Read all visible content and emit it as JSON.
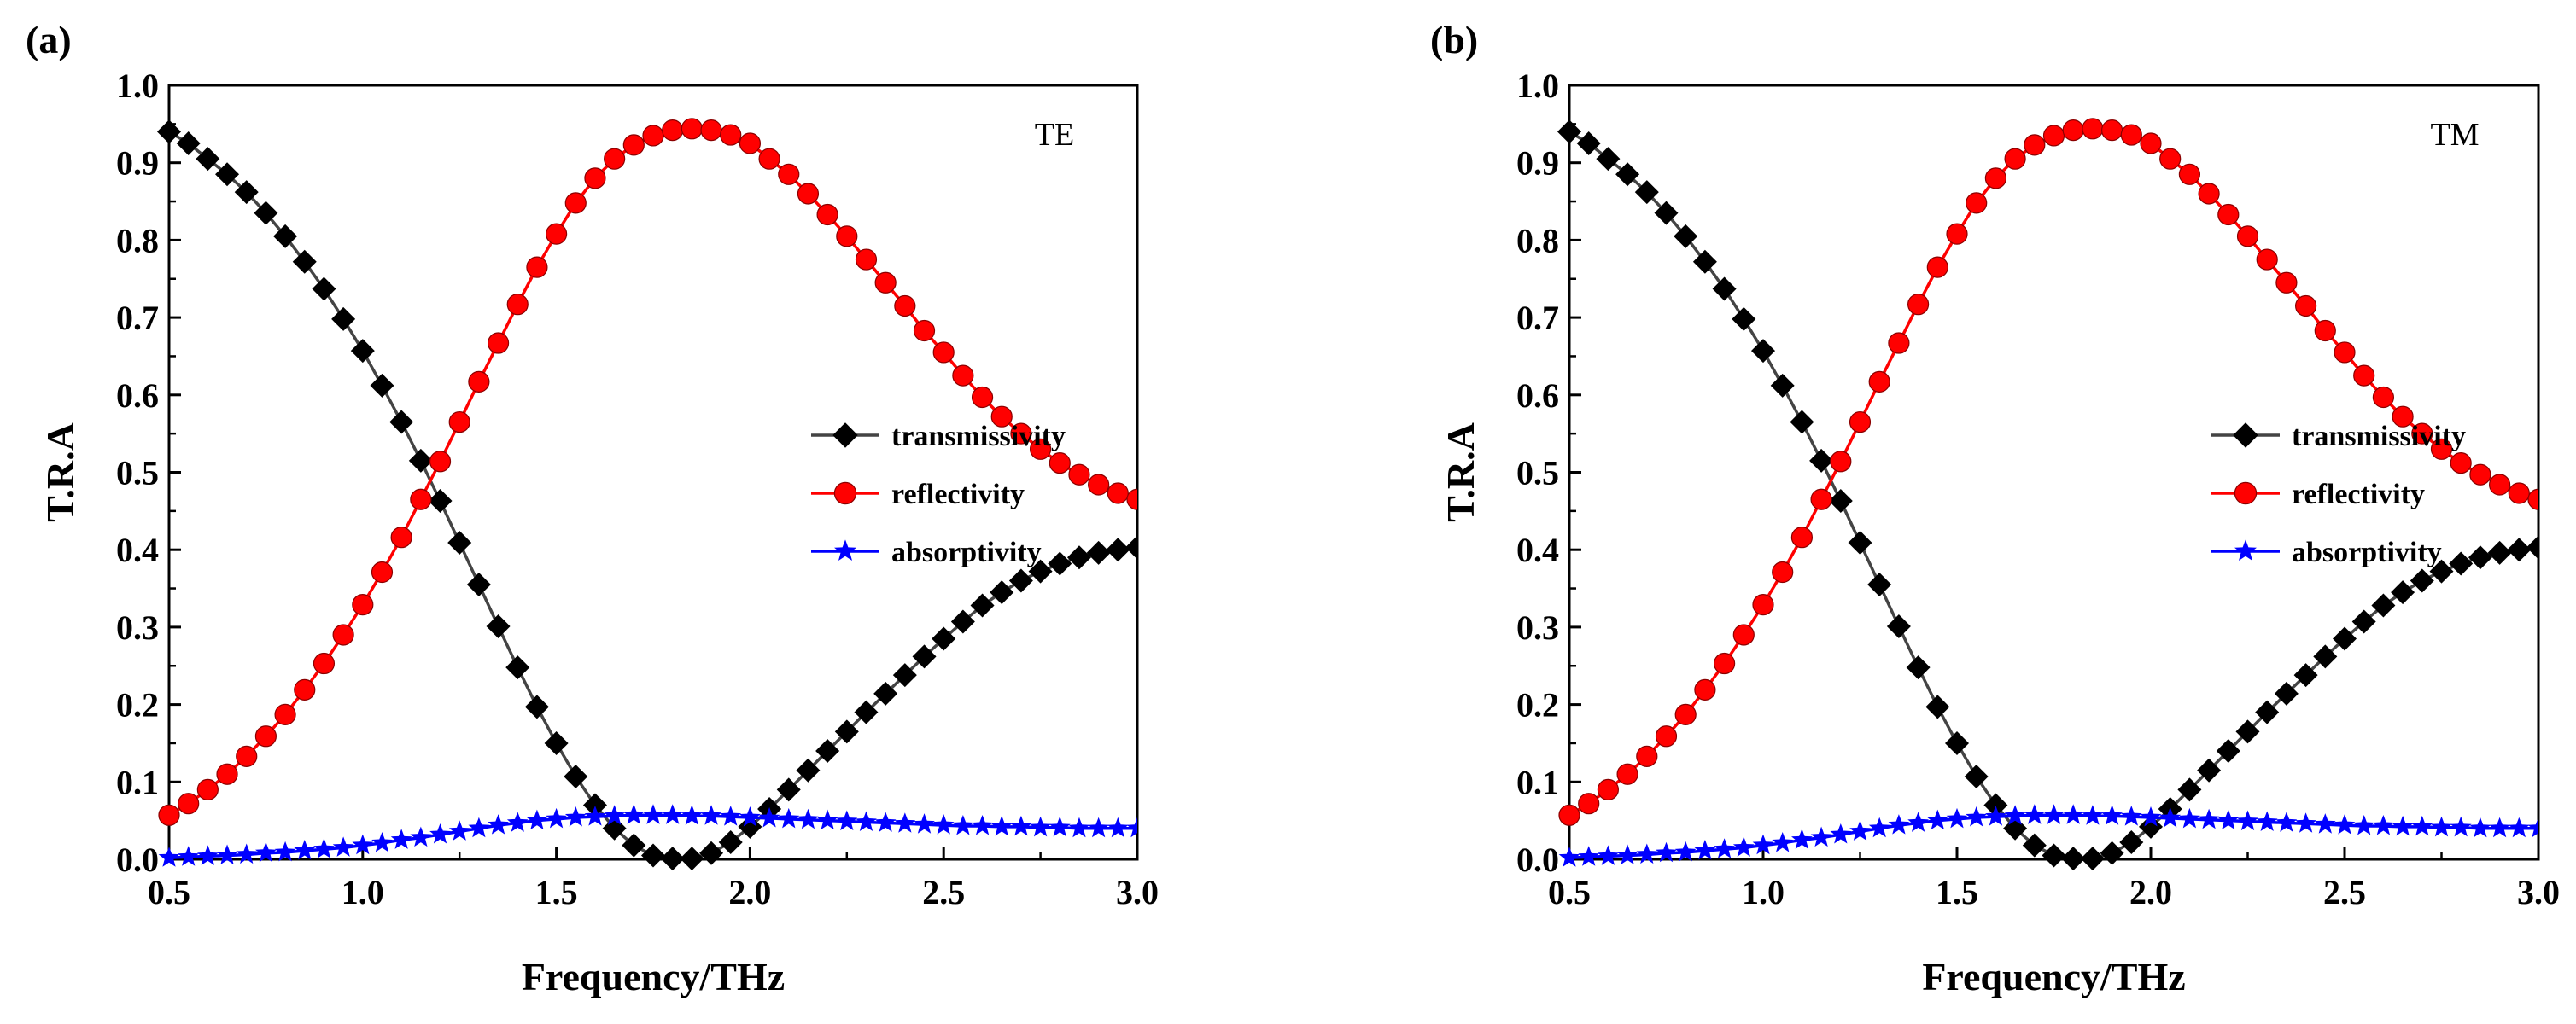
{
  "chart_data": [
    {
      "type": "line",
      "panel_label": "(a)",
      "mode_label": "TE",
      "xlabel": "Frequency/THz",
      "ylabel": "T.R.A",
      "xlim": [
        0.5,
        3.0
      ],
      "ylim": [
        0.0,
        1.0
      ],
      "xticks": [
        "0.5",
        "1.0",
        "1.5",
        "2.0",
        "2.5",
        "3.0"
      ],
      "yticks": [
        "0.0",
        "0.1",
        "0.2",
        "0.3",
        "0.4",
        "0.5",
        "0.6",
        "0.7",
        "0.8",
        "0.9",
        "1.0"
      ],
      "grid": false,
      "legend_position": "right-center",
      "x": [
        0.5,
        0.55,
        0.6,
        0.65,
        0.7,
        0.75,
        0.8,
        0.85,
        0.9,
        0.95,
        1.0,
        1.05,
        1.1,
        1.15,
        1.2,
        1.25,
        1.3,
        1.35,
        1.4,
        1.45,
        1.5,
        1.55,
        1.6,
        1.65,
        1.7,
        1.75,
        1.8,
        1.85,
        1.9,
        1.95,
        2.0,
        2.05,
        2.1,
        2.15,
        2.2,
        2.25,
        2.3,
        2.35,
        2.4,
        2.45,
        2.5,
        2.55,
        2.6,
        2.65,
        2.7,
        2.75,
        2.8,
        2.85,
        2.9,
        2.95,
        3.0
      ],
      "series": [
        {
          "name": "transmissivity",
          "color": "#000000",
          "line_color": "#444444",
          "marker": "diamond",
          "values": [
            0.94,
            0.925,
            0.905,
            0.885,
            0.862,
            0.835,
            0.805,
            0.772,
            0.737,
            0.698,
            0.657,
            0.612,
            0.565,
            0.515,
            0.463,
            0.409,
            0.355,
            0.301,
            0.248,
            0.197,
            0.15,
            0.107,
            0.07,
            0.04,
            0.018,
            0.005,
            0.001,
            0.001,
            0.008,
            0.022,
            0.042,
            0.065,
            0.09,
            0.115,
            0.14,
            0.165,
            0.19,
            0.214,
            0.238,
            0.262,
            0.285,
            0.307,
            0.328,
            0.345,
            0.36,
            0.372,
            0.382,
            0.39,
            0.396,
            0.4,
            0.403
          ]
        },
        {
          "name": "reflectivity",
          "color": "#ff0000",
          "line_color": "#ff0000",
          "marker": "circle",
          "values": [
            0.057,
            0.072,
            0.09,
            0.11,
            0.133,
            0.159,
            0.187,
            0.219,
            0.253,
            0.29,
            0.329,
            0.371,
            0.416,
            0.465,
            0.514,
            0.565,
            0.617,
            0.667,
            0.717,
            0.765,
            0.808,
            0.848,
            0.88,
            0.905,
            0.923,
            0.935,
            0.942,
            0.944,
            0.942,
            0.936,
            0.925,
            0.905,
            0.885,
            0.86,
            0.833,
            0.805,
            0.775,
            0.745,
            0.715,
            0.683,
            0.655,
            0.625,
            0.597,
            0.572,
            0.55,
            0.53,
            0.512,
            0.497,
            0.484,
            0.473,
            0.465
          ]
        },
        {
          "name": "absorptivity",
          "color": "#0000ff",
          "line_color": "#0000ff",
          "marker": "star",
          "values": [
            0.002,
            0.003,
            0.004,
            0.005,
            0.006,
            0.008,
            0.009,
            0.011,
            0.013,
            0.015,
            0.018,
            0.021,
            0.025,
            0.028,
            0.032,
            0.036,
            0.04,
            0.044,
            0.047,
            0.05,
            0.052,
            0.054,
            0.055,
            0.056,
            0.057,
            0.057,
            0.057,
            0.056,
            0.056,
            0.055,
            0.054,
            0.053,
            0.052,
            0.051,
            0.05,
            0.049,
            0.048,
            0.047,
            0.046,
            0.045,
            0.044,
            0.043,
            0.043,
            0.042,
            0.042,
            0.041,
            0.041,
            0.04,
            0.04,
            0.04,
            0.04
          ]
        }
      ]
    },
    {
      "type": "line",
      "panel_label": "(b)",
      "mode_label": "TM",
      "xlabel": "Frequency/THz",
      "ylabel": "T.R.A",
      "xlim": [
        0.5,
        3.0
      ],
      "ylim": [
        0.0,
        1.0
      ],
      "xticks": [
        "0.5",
        "1.0",
        "1.5",
        "2.0",
        "2.5",
        "3.0"
      ],
      "yticks": [
        "0.0",
        "0.1",
        "0.2",
        "0.3",
        "0.4",
        "0.5",
        "0.6",
        "0.7",
        "0.8",
        "0.9",
        "1.0"
      ],
      "grid": false,
      "legend_position": "right-center",
      "x": [
        0.5,
        0.55,
        0.6,
        0.65,
        0.7,
        0.75,
        0.8,
        0.85,
        0.9,
        0.95,
        1.0,
        1.05,
        1.1,
        1.15,
        1.2,
        1.25,
        1.3,
        1.35,
        1.4,
        1.45,
        1.5,
        1.55,
        1.6,
        1.65,
        1.7,
        1.75,
        1.8,
        1.85,
        1.9,
        1.95,
        2.0,
        2.05,
        2.1,
        2.15,
        2.2,
        2.25,
        2.3,
        2.35,
        2.4,
        2.45,
        2.5,
        2.55,
        2.6,
        2.65,
        2.7,
        2.75,
        2.8,
        2.85,
        2.9,
        2.95,
        3.0
      ],
      "series": [
        {
          "name": "transmissivity",
          "color": "#000000",
          "line_color": "#444444",
          "marker": "diamond",
          "values": [
            0.94,
            0.925,
            0.905,
            0.885,
            0.862,
            0.835,
            0.805,
            0.772,
            0.737,
            0.698,
            0.657,
            0.612,
            0.565,
            0.515,
            0.463,
            0.409,
            0.355,
            0.301,
            0.248,
            0.197,
            0.15,
            0.107,
            0.07,
            0.04,
            0.018,
            0.005,
            0.001,
            0.001,
            0.008,
            0.022,
            0.042,
            0.065,
            0.09,
            0.115,
            0.14,
            0.165,
            0.19,
            0.214,
            0.238,
            0.262,
            0.285,
            0.307,
            0.328,
            0.345,
            0.36,
            0.372,
            0.382,
            0.39,
            0.396,
            0.4,
            0.403
          ]
        },
        {
          "name": "reflectivity",
          "color": "#ff0000",
          "line_color": "#ff0000",
          "marker": "circle",
          "values": [
            0.057,
            0.072,
            0.09,
            0.11,
            0.133,
            0.159,
            0.187,
            0.219,
            0.253,
            0.29,
            0.329,
            0.371,
            0.416,
            0.465,
            0.514,
            0.565,
            0.617,
            0.667,
            0.717,
            0.765,
            0.808,
            0.848,
            0.88,
            0.905,
            0.923,
            0.935,
            0.942,
            0.944,
            0.942,
            0.936,
            0.925,
            0.905,
            0.885,
            0.86,
            0.833,
            0.805,
            0.775,
            0.745,
            0.715,
            0.683,
            0.655,
            0.625,
            0.597,
            0.572,
            0.55,
            0.53,
            0.512,
            0.497,
            0.484,
            0.473,
            0.465
          ]
        },
        {
          "name": "absorptivity",
          "color": "#0000ff",
          "line_color": "#0000ff",
          "marker": "star",
          "values": [
            0.002,
            0.003,
            0.004,
            0.005,
            0.006,
            0.008,
            0.009,
            0.011,
            0.013,
            0.015,
            0.018,
            0.021,
            0.025,
            0.028,
            0.032,
            0.036,
            0.04,
            0.044,
            0.047,
            0.05,
            0.052,
            0.054,
            0.055,
            0.056,
            0.057,
            0.057,
            0.057,
            0.056,
            0.056,
            0.055,
            0.054,
            0.053,
            0.052,
            0.051,
            0.05,
            0.049,
            0.048,
            0.047,
            0.046,
            0.045,
            0.044,
            0.043,
            0.043,
            0.042,
            0.042,
            0.041,
            0.041,
            0.04,
            0.04,
            0.04,
            0.04
          ]
        }
      ]
    }
  ]
}
